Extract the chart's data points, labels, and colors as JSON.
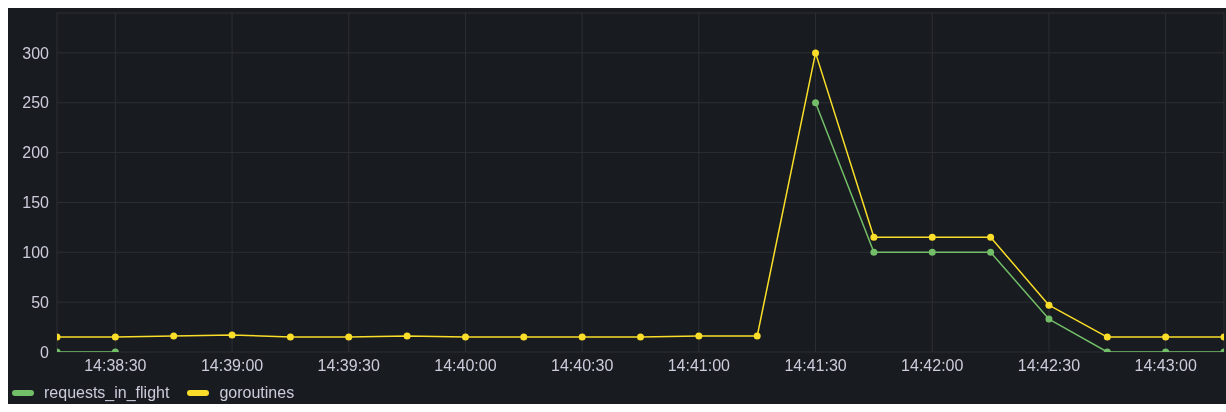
{
  "chart_data": {
    "type": "line",
    "categories": [
      null,
      "14:38:30",
      null,
      "14:39:00",
      null,
      "14:39:30",
      null,
      "14:40:00",
      null,
      "14:40:30",
      null,
      "14:41:00",
      null,
      "14:41:30",
      null,
      "14:42:00",
      null,
      "14:42:30",
      null,
      "14:43:00",
      null
    ],
    "series": [
      {
        "name": "requests_in_flight",
        "color": "#73bf69",
        "values": [
          0,
          0,
          null,
          null,
          null,
          null,
          null,
          null,
          null,
          null,
          null,
          null,
          null,
          250,
          100,
          100,
          100,
          33,
          0,
          0,
          0
        ]
      },
      {
        "name": "goroutines",
        "color": "#fade2a",
        "values": [
          15,
          15,
          16,
          17,
          15,
          15,
          16,
          15,
          15,
          15,
          15,
          16,
          16,
          300,
          115,
          115,
          115,
          47,
          15,
          15,
          15
        ]
      }
    ],
    "ylim": [
      0,
      340
    ],
    "yticks": [
      0,
      50,
      100,
      150,
      200,
      250,
      300
    ],
    "grid": true,
    "legend": "bottom left",
    "marker": "circle",
    "line_style": "solid"
  }
}
